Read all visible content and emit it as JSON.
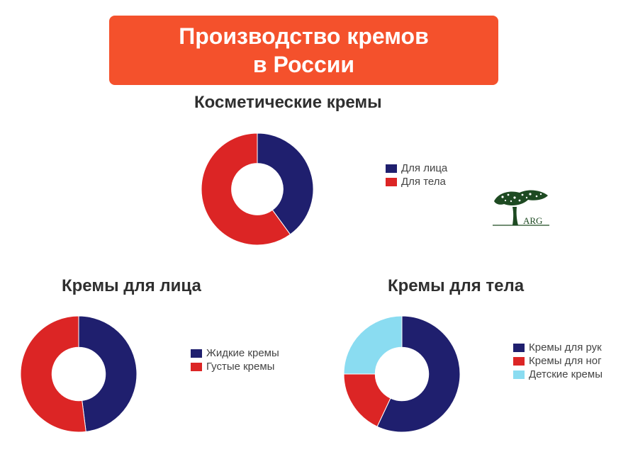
{
  "banner": {
    "title": "Производство кремов\nв России",
    "color": "#f4512c"
  },
  "logo": {
    "text": "ARG",
    "icon": "tree-logo-icon"
  },
  "colors": {
    "navy": "#1f1f6e",
    "red": "#dc2525",
    "light_blue": "#8adcf1"
  },
  "chart_data": [
    {
      "type": "pie",
      "title": "Косметические кремы",
      "donut": true,
      "legend_position": "right",
      "categories": [
        "Для лица",
        "Для тела"
      ],
      "values": [
        40,
        60
      ],
      "colors": [
        "#1f1f6e",
        "#dc2525"
      ]
    },
    {
      "type": "pie",
      "title": "Кремы для лица",
      "donut": true,
      "legend_position": "right",
      "categories": [
        "Жидкие кремы",
        "Густые кремы"
      ],
      "values": [
        48,
        52
      ],
      "colors": [
        "#1f1f6e",
        "#dc2525"
      ]
    },
    {
      "type": "pie",
      "title": "Кремы для тела",
      "donut": true,
      "legend_position": "right",
      "categories": [
        "Кремы для рук",
        "Кремы для ног",
        "Детские кремы"
      ],
      "values": [
        57,
        18,
        25
      ],
      "colors": [
        "#1f1f6e",
        "#dc2525",
        "#8adcf1"
      ]
    }
  ]
}
